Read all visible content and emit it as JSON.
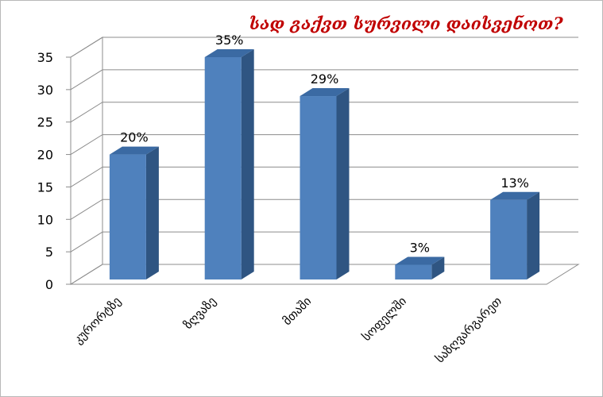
{
  "chart_data": {
    "type": "bar",
    "title": "სად გაქვთ სურვილი დაისვენოთ?",
    "categories": [
      "კურორტზე",
      "ზღვაზე",
      "მთაში",
      "სოფელში",
      "საზღვარგარეთ"
    ],
    "values": [
      20,
      35,
      29,
      3,
      13
    ],
    "data_labels": [
      "20%",
      "35%",
      "29%",
      "3%",
      "13%"
    ],
    "ylim": [
      0,
      35
    ],
    "yticks": [
      "0",
      "5",
      "10",
      "15",
      "20",
      "25",
      "30",
      "35"
    ],
    "grid": true,
    "legend": "none",
    "three_d": true
  },
  "colors": {
    "bar_front": "#4f81bd",
    "bar_side": "#2f5582",
    "bar_top": "#3b6aa3",
    "title": "#c00000",
    "grid": "#8c8c8c",
    "text": "#000000"
  }
}
